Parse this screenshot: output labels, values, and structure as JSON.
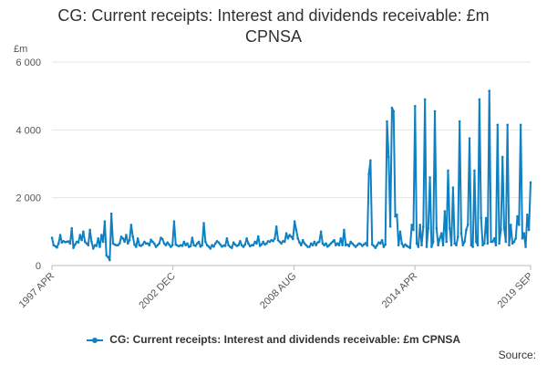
{
  "chart_data": {
    "type": "line",
    "title": "CG: Current receipts: Interest and dividends receivable: £m CPNSA",
    "title_lines": [
      "CG: Current receipts: Interest and dividends receivable: £m",
      "CPNSA"
    ],
    "yunit": "£m",
    "ylim": [
      0,
      6000
    ],
    "yticks": [
      0,
      2000,
      4000,
      6000
    ],
    "ytick_labels": [
      "0",
      "2 000",
      "4 000",
      "6 000"
    ],
    "xticks": [
      "1997 APR",
      "2002 DEC",
      "2008 AUG",
      "2014 APR",
      "2019 SEP"
    ],
    "grid": true,
    "legend_position": "bottom",
    "color": "#0f81c3",
    "series": [
      {
        "name": "CG: Current receipts: Interest and dividends receivable: £m CPNSA",
        "start": "1997-04",
        "end": "2019-09",
        "values": [
          820,
          600,
          570,
          530,
          650,
          900,
          680,
          720,
          690,
          700,
          710,
          650,
          1100,
          520,
          620,
          700,
          680,
          900,
          750,
          1000,
          700,
          650,
          600,
          1050,
          700,
          500,
          600,
          580,
          800,
          550,
          900,
          700,
          1300,
          300,
          250,
          160,
          1530,
          650,
          620,
          600,
          600,
          650,
          850,
          800,
          700,
          900,
          650,
          750,
          1200,
          850,
          620,
          550,
          800,
          600,
          580,
          620,
          700,
          650,
          650,
          600,
          760,
          700,
          650,
          550,
          600,
          650,
          820,
          780,
          650,
          600,
          680,
          620,
          550,
          600,
          1300,
          620,
          590,
          570,
          600,
          580,
          700,
          600,
          650,
          550,
          570,
          820,
          600,
          580,
          650,
          700,
          560,
          600,
          1250,
          700,
          600,
          560,
          500,
          600,
          560,
          650,
          720,
          680,
          620,
          560,
          590,
          580,
          800,
          600,
          550,
          520,
          680,
          620,
          580,
          600,
          720,
          600,
          550,
          620,
          800,
          650,
          570,
          600,
          600,
          700,
          650,
          860,
          580,
          620,
          700,
          620,
          650,
          720,
          700,
          750,
          720,
          800,
          1150,
          750,
          700,
          650,
          720,
          700,
          950,
          800,
          900,
          850,
          780,
          1300,
          1050,
          800,
          680,
          600,
          750,
          650,
          600,
          550,
          550,
          650,
          600,
          700,
          600,
          680,
          700,
          1000,
          650,
          600,
          650,
          560,
          600,
          650,
          700,
          750,
          600,
          650,
          600,
          800,
          600,
          1050,
          600,
          620,
          570,
          700,
          650,
          600,
          550,
          600,
          650,
          630,
          580,
          620,
          660,
          590,
          2700,
          3100,
          620,
          580,
          520,
          600,
          680,
          650,
          750,
          550,
          620,
          4250,
          3200,
          1150,
          4650,
          4550,
          1450,
          1500,
          600,
          1000,
          650,
          550,
          620,
          580,
          550,
          520,
          1200,
          1050,
          4700,
          650,
          550,
          1200,
          600,
          1150,
          4900,
          550,
          1100,
          2600,
          550,
          700,
          4550,
          1100,
          600,
          800,
          950,
          600,
          1600,
          700,
          2800,
          1100,
          600,
          2300,
          650,
          600,
          850,
          4250,
          950,
          600,
          700,
          1050,
          1200,
          3750,
          600,
          550,
          2800,
          700,
          600,
          4900,
          1400,
          600,
          650,
          1400,
          650,
          5150,
          700,
          700,
          800,
          600,
          4150,
          650,
          1050,
          3200,
          1100,
          700,
          4150,
          600,
          1200,
          650,
          700,
          800,
          1450,
          1200,
          4150,
          800,
          950,
          550,
          1500,
          1050,
          2450
        ]
      }
    ]
  },
  "legend": {
    "label": "CG: Current receipts: Interest and dividends receivable: £m CPNSA"
  },
  "source": {
    "label": "Source:"
  }
}
